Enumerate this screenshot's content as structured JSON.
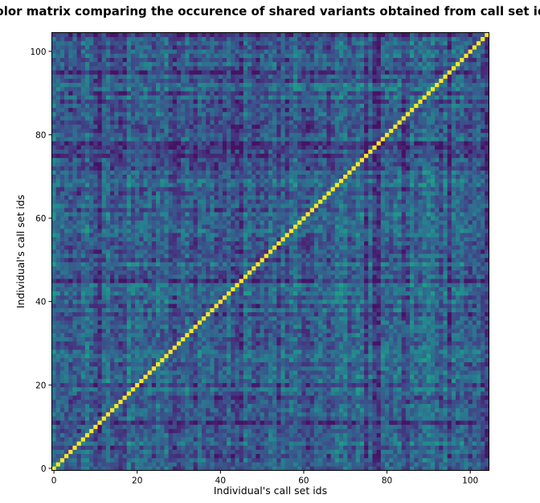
{
  "chart_data": {
    "type": "heatmap",
    "title": "Color matrix comparing the occurence of shared variants obtained from call set ids",
    "xlabel": "Individual's call set ids",
    "ylabel": "Individual's call set ids",
    "n": 105,
    "xlim": [
      -0.5,
      104.5
    ],
    "ylim": [
      -0.5,
      104.5
    ],
    "xticks": [
      0,
      20,
      40,
      60,
      80,
      100
    ],
    "yticks": [
      0,
      20,
      40,
      60,
      80,
      100
    ],
    "colormap": "viridis",
    "diagonal_value": 1.0,
    "off_diagonal_range": [
      0.05,
      0.55
    ],
    "grid": false,
    "legend": "none"
  },
  "colors": {
    "background": "#ffffff",
    "diagonal": "#fde725",
    "frame": "#000000"
  }
}
